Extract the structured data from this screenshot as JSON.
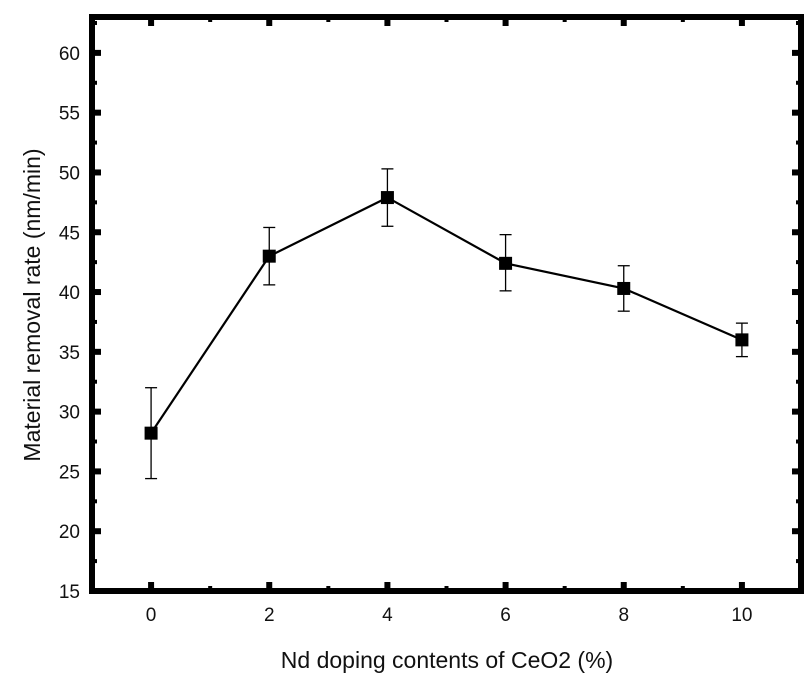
{
  "chart_data": {
    "type": "line",
    "title": "",
    "xlabel": "Nd doping contents of CeO2 (%)",
    "ylabel": "Material removal rate (nm/min)",
    "xlim": [
      -1,
      11
    ],
    "ylim": [
      15,
      63
    ],
    "x_ticks": [
      0,
      2,
      4,
      6,
      8,
      10
    ],
    "y_ticks": [
      15,
      20,
      25,
      30,
      35,
      40,
      45,
      50,
      55,
      60
    ],
    "grid": false,
    "legend": "none",
    "marker": "square",
    "line_color": "#000000",
    "series": [
      {
        "x": [
          0,
          2,
          4,
          6,
          8,
          10
        ],
        "y": [
          28.2,
          43.0,
          47.9,
          42.4,
          40.3,
          36.0
        ],
        "error_low": [
          24.4,
          40.6,
          45.5,
          40.1,
          38.4,
          34.6
        ],
        "error_high": [
          32.0,
          45.4,
          50.3,
          44.8,
          42.2,
          37.4
        ]
      }
    ]
  }
}
